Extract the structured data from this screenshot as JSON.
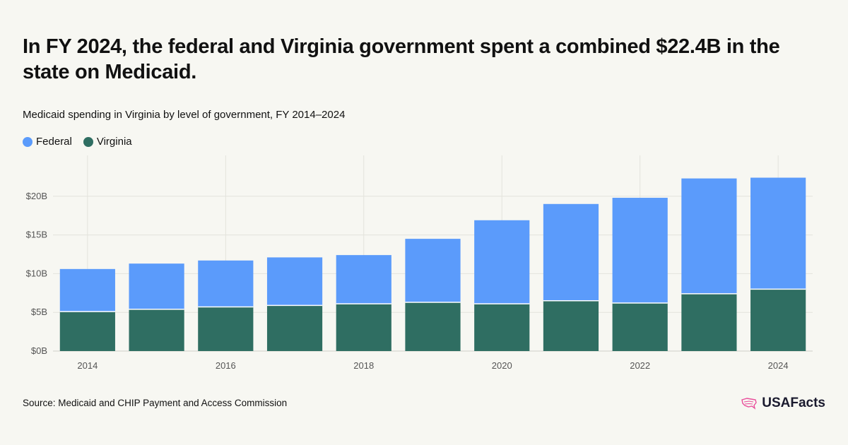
{
  "header": {
    "title": "In FY 2024, the federal and Virginia government spent a combined $22.4B in the state on Medicaid.",
    "subtitle": "Medicaid spending in Virginia by level of government, FY 2014–2024"
  },
  "footer": {
    "source": "Source: Medicaid and CHIP Payment and Access Commission",
    "brand": "USAFacts"
  },
  "colors": {
    "federal": "#5b9bfb",
    "virginia": "#2f6e62",
    "background": "#f7f7f2",
    "brand_icon": "#e94e9b"
  },
  "icons": {
    "brand": "us-map-icon"
  },
  "chart_data": {
    "type": "bar",
    "stacked": true,
    "title": "Medicaid spending in Virginia by level of government, FY 2014–2024",
    "categories": [
      "2014",
      "2015",
      "2016",
      "2017",
      "2018",
      "2019",
      "2020",
      "2021",
      "2022",
      "2023",
      "2024"
    ],
    "x_tick_labels": [
      "2014",
      "2016",
      "2018",
      "2020",
      "2022",
      "2024"
    ],
    "series": [
      {
        "name": "Virginia",
        "values": [
          5.1,
          5.4,
          5.7,
          5.9,
          6.1,
          6.3,
          6.1,
          6.5,
          6.2,
          7.4,
          8.0
        ]
      },
      {
        "name": "Federal",
        "values": [
          5.5,
          5.9,
          6.0,
          6.2,
          6.3,
          8.2,
          10.8,
          12.5,
          13.6,
          14.9,
          14.4
        ]
      }
    ],
    "y_ticks": [
      0,
      5,
      10,
      15,
      20
    ],
    "y_tick_labels": [
      "$0B",
      "$5B",
      "$10B",
      "$15B",
      "$20B"
    ],
    "ylim": [
      0,
      24
    ],
    "grid": true,
    "legend_position": "top-left",
    "xlabel": "",
    "ylabel": ""
  }
}
